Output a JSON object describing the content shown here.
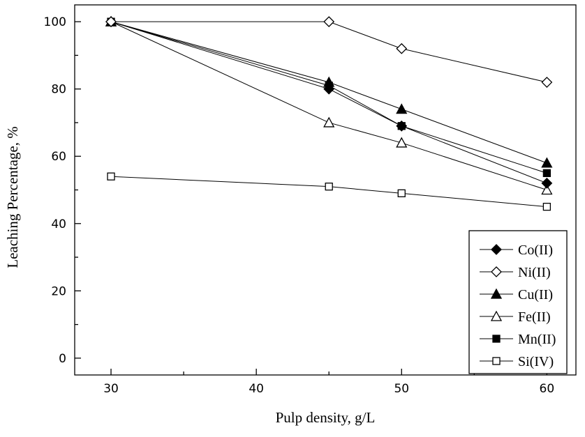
{
  "chart_data": {
    "type": "line",
    "title": "",
    "xlabel": "Pulp density, g/L",
    "ylabel": "Leaching Percentage, %",
    "xlim": [
      27.5,
      62
    ],
    "ylim": [
      -5,
      105
    ],
    "xticks": [
      30,
      40,
      50,
      60
    ],
    "xminor": [
      35,
      45,
      55
    ],
    "yticks": [
      0,
      20,
      40,
      60,
      80,
      100
    ],
    "yminor": [
      10,
      30,
      50,
      70,
      90
    ],
    "grid": false,
    "legend_position": "bottom-right",
    "series": [
      {
        "name": "Co(II)",
        "marker": "diamond-filled",
        "x": [
          30,
          45,
          50,
          60
        ],
        "values": [
          100,
          80,
          69,
          52
        ]
      },
      {
        "name": "Ni(II)",
        "marker": "diamond-open",
        "x": [
          30,
          45,
          50,
          60
        ],
        "values": [
          100,
          100,
          92,
          82
        ]
      },
      {
        "name": "Cu(II)",
        "marker": "triangle-filled",
        "x": [
          30,
          45,
          50,
          60
        ],
        "values": [
          100,
          82,
          74,
          58
        ]
      },
      {
        "name": "Fe(II)",
        "marker": "triangle-open",
        "x": [
          30,
          45,
          50,
          60
        ],
        "values": [
          100,
          70,
          64,
          50
        ]
      },
      {
        "name": "Mn(II)",
        "marker": "square-filled",
        "x": [
          30,
          45,
          50,
          60
        ],
        "values": [
          100,
          81,
          69,
          55
        ]
      },
      {
        "name": "Si(IV)",
        "marker": "square-open",
        "x": [
          30,
          45,
          50,
          60
        ],
        "values": [
          54,
          51,
          49,
          45
        ]
      }
    ]
  }
}
